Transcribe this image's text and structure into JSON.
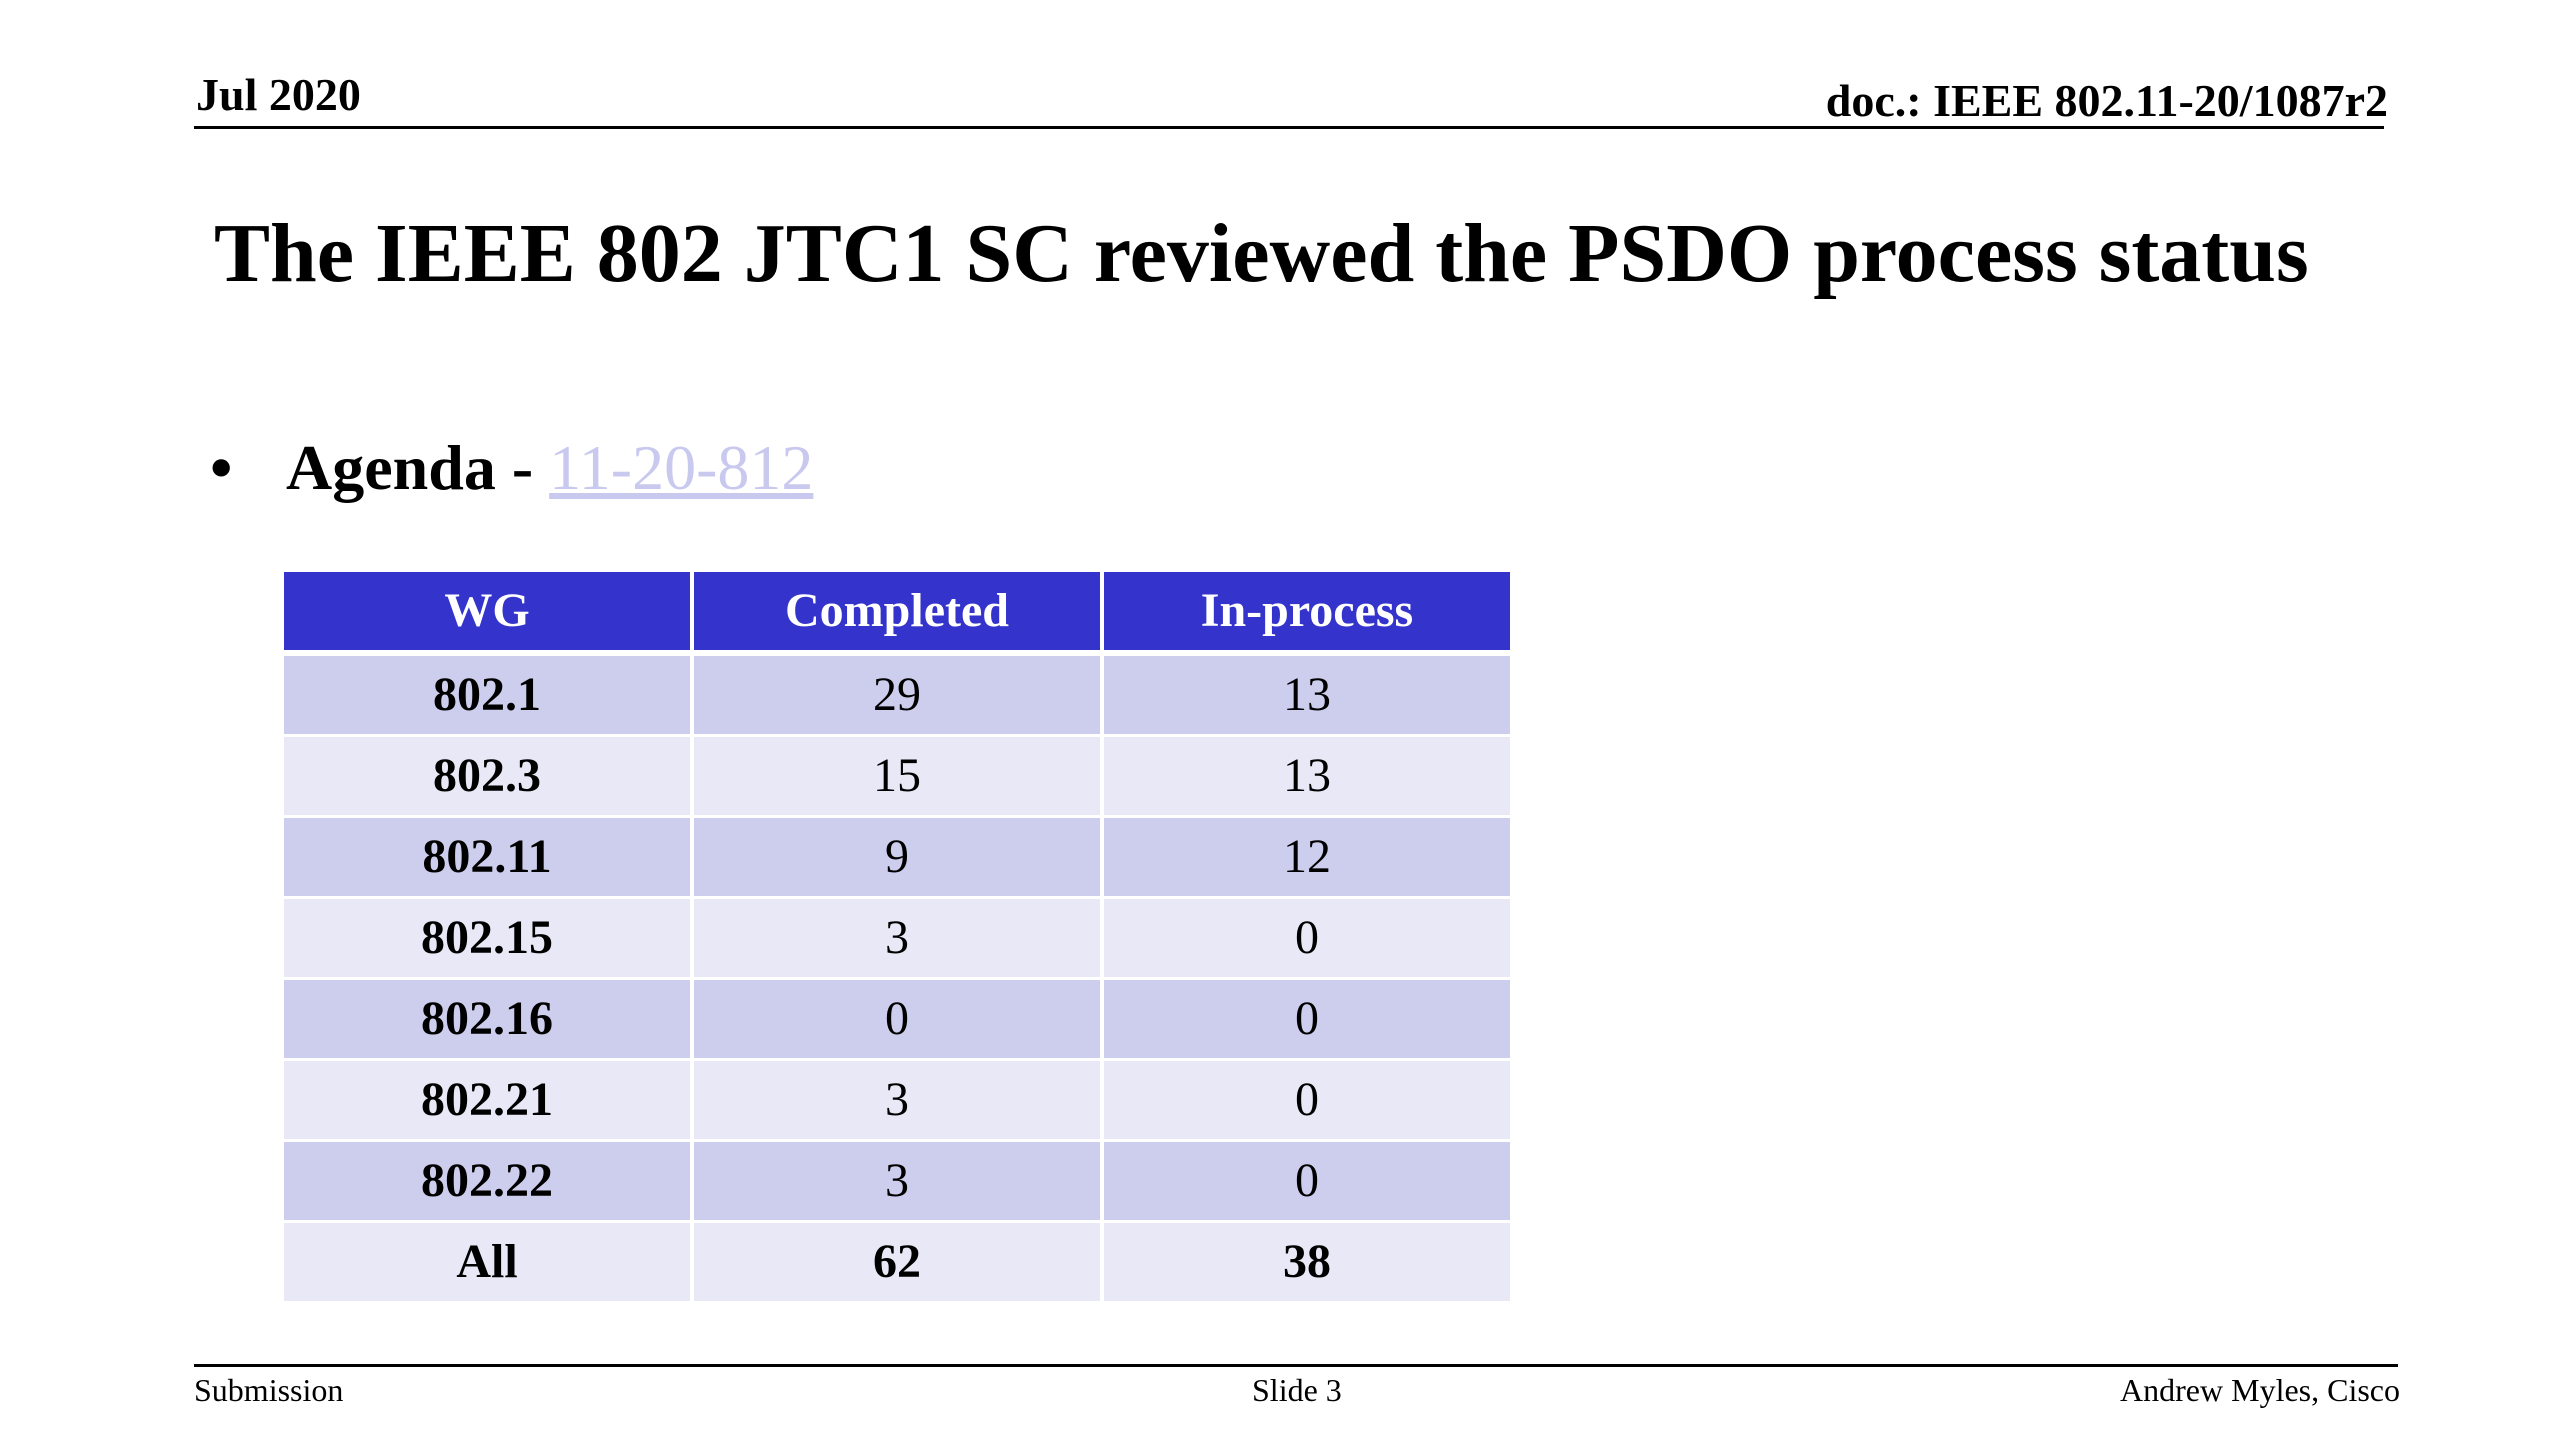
{
  "header": {
    "date": "Jul 2020",
    "doc_id": "doc.: IEEE 802.11-20/1087r2"
  },
  "title": "The IEEE 802 JTC1 SC reviewed the PSDO process status",
  "bullet": {
    "glyph": "•",
    "label": "Agenda - ",
    "link_text": "11-20-812",
    "link_color": "#c9c9ef"
  },
  "table": {
    "header_color": "#3434cc",
    "columns": [
      "WG",
      "Completed",
      "In-process"
    ],
    "rows": [
      {
        "wg": "802.1",
        "completed": "29",
        "in_process": "13"
      },
      {
        "wg": "802.3",
        "completed": "15",
        "in_process": "13"
      },
      {
        "wg": "802.11",
        "completed": "9",
        "in_process": "12"
      },
      {
        "wg": "802.15",
        "completed": "3",
        "in_process": "0"
      },
      {
        "wg": "802.16",
        "completed": "0",
        "in_process": "0"
      },
      {
        "wg": "802.21",
        "completed": "3",
        "in_process": "0"
      },
      {
        "wg": "802.22",
        "completed": "3",
        "in_process": "0"
      }
    ],
    "total": {
      "wg": "All",
      "completed": "62",
      "in_process": "38"
    }
  },
  "footer": {
    "left": "Submission",
    "center": "Slide 3",
    "right": "Andrew Myles, Cisco"
  }
}
